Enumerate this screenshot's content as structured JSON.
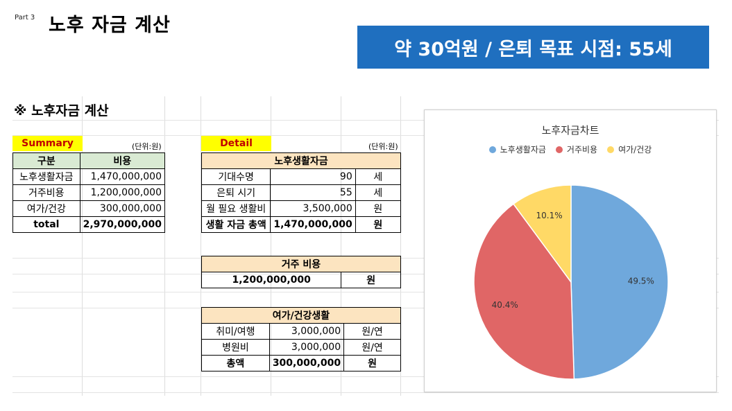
{
  "slide": {
    "part": "Part 3",
    "title": "노후 자금 계산",
    "banner": "약 30억원 / 은퇴 목표 시점: 55세"
  },
  "sheet": {
    "title": "※ 노후자금 계산",
    "summary": {
      "label": "Summary",
      "unit": "(단위:원)",
      "headers": [
        "구분",
        "비용"
      ],
      "rows": [
        [
          "노후생활자금",
          "1,470,000,000"
        ],
        [
          "거주비용",
          "1,200,000,000"
        ],
        [
          "여가/건강",
          "300,000,000"
        ]
      ],
      "total": [
        "total",
        "2,970,000,000"
      ]
    },
    "detail": {
      "label": "Detail",
      "unit": "(단위:원)",
      "living": {
        "title": "노후생활자금",
        "rows": [
          [
            "기대수명",
            "90",
            "세"
          ],
          [
            "은퇴 시기",
            "55",
            "세"
          ],
          [
            "월 필요 생활비",
            "3,500,000",
            "원"
          ]
        ],
        "total": [
          "생활 자금 총액",
          "1,470,000,000",
          "원"
        ]
      },
      "housing": {
        "title": "거주 비용",
        "value": "1,200,000,000",
        "unit": "원"
      },
      "leisure": {
        "title": "여가/건강생활",
        "rows": [
          [
            "취미/여행",
            "3,000,000",
            "원/연"
          ],
          [
            "병원비",
            "3,000,000",
            "원/연"
          ]
        ],
        "total": [
          "총액",
          "300,000,000",
          "원"
        ]
      }
    }
  },
  "chart_data": {
    "type": "pie",
    "title": "노후자금차트",
    "categories": [
      "노후생활자금",
      "거주비용",
      "여가/건강"
    ],
    "values": [
      49.5,
      40.4,
      10.1
    ],
    "labels": [
      "49.5%",
      "40.4%",
      "10.1%"
    ],
    "colors": [
      "#6fa8dc",
      "#e06666",
      "#ffd966"
    ],
    "legend": "top"
  }
}
